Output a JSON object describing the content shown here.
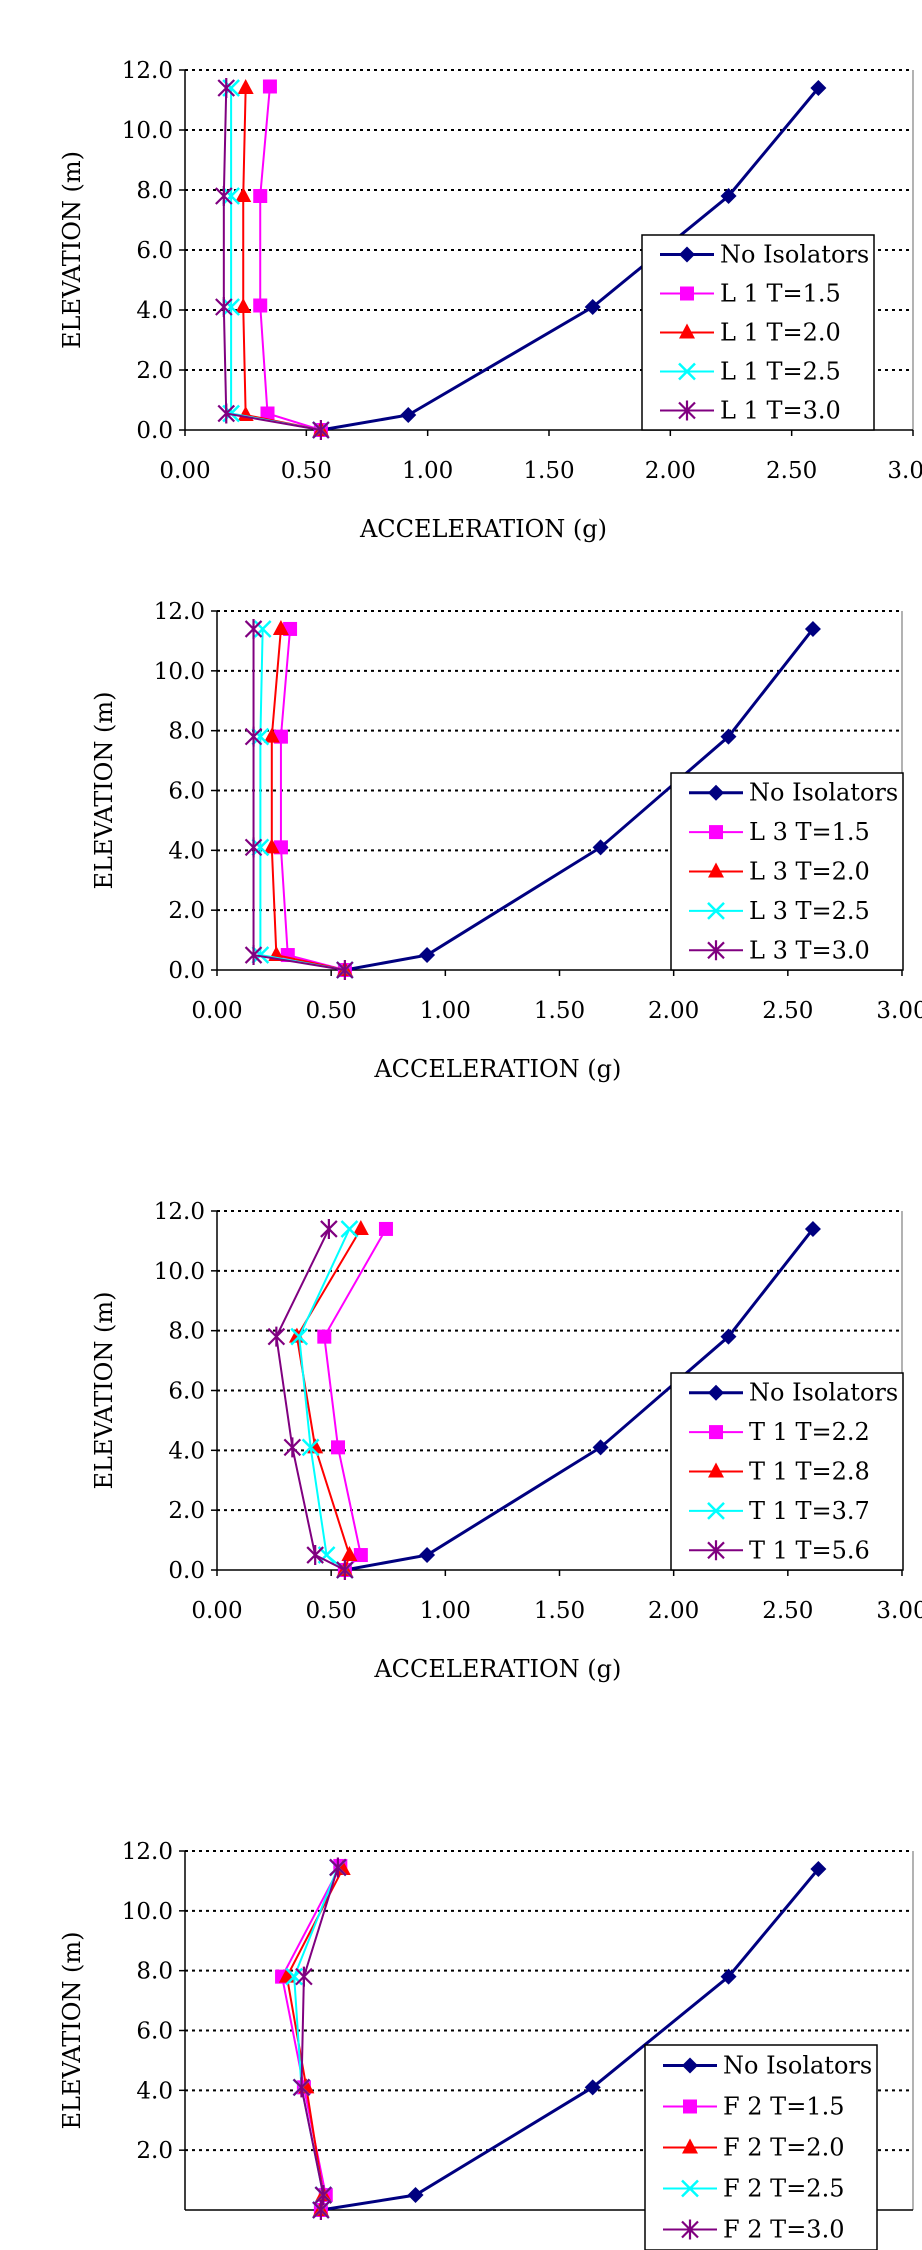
{
  "chart_data": [
    {
      "type": "line",
      "title": "",
      "xlabel": "ACCELERATION (g)",
      "ylabel": "ELEVATION (m)",
      "xlim": [
        0,
        3
      ],
      "ylim": [
        0,
        12
      ],
      "x_ticks": [
        "0.00",
        "0.50",
        "1.00",
        "1.50",
        "2.00",
        "2.50",
        "3.00"
      ],
      "y_ticks": [
        "0.0",
        "2.0",
        "4.0",
        "6.0",
        "8.0",
        "10.0",
        "12.0"
      ],
      "grid": "horizontal dotted",
      "legend_position": "right",
      "series": [
        {
          "name": "No Isolators",
          "color": "#000080",
          "marker": "diamond",
          "points": [
            [
              0.56,
              0.0
            ],
            [
              0.92,
              0.5
            ],
            [
              1.68,
              4.1
            ],
            [
              2.24,
              7.8
            ],
            [
              2.61,
              11.4
            ]
          ]
        },
        {
          "name": "L 1 T=1.5",
          "color": "#ff00ff",
          "marker": "square",
          "points": [
            [
              0.56,
              0.0
            ],
            [
              0.34,
              0.55
            ],
            [
              0.31,
              4.15
            ],
            [
              0.31,
              7.8
            ],
            [
              0.35,
              11.45
            ]
          ]
        },
        {
          "name": "L 1 T=2.0",
          "color": "#ff0000",
          "marker": "triangle",
          "points": [
            [
              0.56,
              0.0
            ],
            [
              0.25,
              0.5
            ],
            [
              0.24,
              4.1
            ],
            [
              0.24,
              7.8
            ],
            [
              0.25,
              11.4
            ]
          ]
        },
        {
          "name": "L 1 T=2.5",
          "color": "#00ffff",
          "marker": "x",
          "points": [
            [
              0.56,
              0.0
            ],
            [
              0.19,
              0.55
            ],
            [
              0.19,
              4.1
            ],
            [
              0.19,
              7.8
            ],
            [
              0.19,
              11.4
            ]
          ]
        },
        {
          "name": "L 1 T=3.0",
          "color": "#800080",
          "marker": "star",
          "points": [
            [
              0.56,
              0.0
            ],
            [
              0.17,
              0.55
            ],
            [
              0.16,
              4.1
            ],
            [
              0.16,
              7.8
            ],
            [
              0.17,
              11.4
            ]
          ]
        }
      ]
    },
    {
      "type": "line",
      "title": "",
      "xlabel": "ACCELERATION (g)",
      "ylabel": "ELEVATION (m)",
      "xlim": [
        0,
        3
      ],
      "ylim": [
        0,
        12
      ],
      "x_ticks": [
        "0.00",
        "0.50",
        "1.00",
        "1.50",
        "2.00",
        "2.50",
        "3.00"
      ],
      "y_ticks": [
        "0.0",
        "2.0",
        "4.0",
        "6.0",
        "8.0",
        "10.0",
        "12.0"
      ],
      "grid": "horizontal dotted",
      "legend_position": "right",
      "series": [
        {
          "name": "No Isolators",
          "color": "#000080",
          "marker": "diamond",
          "points": [
            [
              0.56,
              0.0
            ],
            [
              0.92,
              0.5
            ],
            [
              1.68,
              4.1
            ],
            [
              2.24,
              7.8
            ],
            [
              2.61,
              11.4
            ]
          ]
        },
        {
          "name": "L 3 T=1.5",
          "color": "#ff00ff",
          "marker": "square",
          "points": [
            [
              0.56,
              0.0
            ],
            [
              0.31,
              0.5
            ],
            [
              0.28,
              4.1
            ],
            [
              0.28,
              7.8
            ],
            [
              0.32,
              11.4
            ]
          ]
        },
        {
          "name": "L 3 T=2.0",
          "color": "#ff0000",
          "marker": "triangle",
          "points": [
            [
              0.56,
              0.0
            ],
            [
              0.26,
              0.5
            ],
            [
              0.24,
              4.1
            ],
            [
              0.24,
              7.8
            ],
            [
              0.28,
              11.4
            ]
          ]
        },
        {
          "name": "L 3 T=2.5",
          "color": "#00ffff",
          "marker": "x",
          "points": [
            [
              0.56,
              0.0
            ],
            [
              0.19,
              0.5
            ],
            [
              0.19,
              4.1
            ],
            [
              0.19,
              7.8
            ],
            [
              0.2,
              11.4
            ]
          ]
        },
        {
          "name": "L 3 T=3.0",
          "color": "#800080",
          "marker": "star",
          "points": [
            [
              0.56,
              0.0
            ],
            [
              0.16,
              0.5
            ],
            [
              0.16,
              4.1
            ],
            [
              0.16,
              7.8
            ],
            [
              0.16,
              11.4
            ]
          ]
        }
      ]
    },
    {
      "type": "line",
      "title": "",
      "xlabel": "ACCELERATION (g)",
      "ylabel": "ELEVATION (m)",
      "xlim": [
        0,
        3
      ],
      "ylim": [
        0,
        12
      ],
      "x_ticks": [
        "0.00",
        "0.50",
        "1.00",
        "1.50",
        "2.00",
        "2.50",
        "3.00"
      ],
      "y_ticks": [
        "0.0",
        "2.0",
        "4.0",
        "6.0",
        "8.0",
        "10.0",
        "12.0"
      ],
      "grid": "horizontal dotted",
      "legend_position": "right",
      "series": [
        {
          "name": "No Isolators",
          "color": "#000080",
          "marker": "diamond",
          "points": [
            [
              0.56,
              0.0
            ],
            [
              0.92,
              0.5
            ],
            [
              1.68,
              4.1
            ],
            [
              2.24,
              7.8
            ],
            [
              2.61,
              11.4
            ]
          ]
        },
        {
          "name": "T 1 T=2.2",
          "color": "#ff00ff",
          "marker": "square",
          "points": [
            [
              0.56,
              0.0
            ],
            [
              0.63,
              0.5
            ],
            [
              0.53,
              4.1
            ],
            [
              0.47,
              7.8
            ],
            [
              0.74,
              11.4
            ]
          ]
        },
        {
          "name": "T 1 T=2.8",
          "color": "#ff0000",
          "marker": "triangle",
          "points": [
            [
              0.56,
              0.0
            ],
            [
              0.58,
              0.5
            ],
            [
              0.43,
              4.1
            ],
            [
              0.35,
              7.8
            ],
            [
              0.63,
              11.4
            ]
          ]
        },
        {
          "name": "T 1 T=3.7",
          "color": "#00ffff",
          "marker": "x",
          "points": [
            [
              0.56,
              0.0
            ],
            [
              0.48,
              0.5
            ],
            [
              0.41,
              4.1
            ],
            [
              0.36,
              7.8
            ],
            [
              0.58,
              11.4
            ]
          ]
        },
        {
          "name": "T 1 T=5.6",
          "color": "#800080",
          "marker": "star",
          "points": [
            [
              0.56,
              0.0
            ],
            [
              0.43,
              0.5
            ],
            [
              0.33,
              4.1
            ],
            [
              0.26,
              7.8
            ],
            [
              0.49,
              11.4
            ]
          ]
        }
      ]
    },
    {
      "type": "line",
      "title": "",
      "xlabel": "",
      "ylabel": "ELEVATION (m)",
      "xlim": [
        0,
        3
      ],
      "ylim": [
        0,
        12
      ],
      "x_ticks": [],
      "y_ticks": [
        "2.0",
        "4.0",
        "6.0",
        "8.0",
        "10.0",
        "12.0"
      ],
      "grid": "horizontal dotted",
      "legend_position": "right",
      "series": [
        {
          "name": "No Isolators",
          "color": "#000080",
          "marker": "diamond",
          "points": [
            [
              0.56,
              0.0
            ],
            [
              0.95,
              0.5
            ],
            [
              1.68,
              4.1
            ],
            [
              2.24,
              7.8
            ],
            [
              2.61,
              11.4
            ]
          ]
        },
        {
          "name": "F 2 T=1.5",
          "color": "#ff00ff",
          "marker": "square",
          "points": [
            [
              0.56,
              0.0
            ],
            [
              0.58,
              0.5
            ],
            [
              0.49,
              4.1
            ],
            [
              0.4,
              7.8
            ],
            [
              0.64,
              11.5
            ]
          ]
        },
        {
          "name": "F 2 T=2.0",
          "color": "#ff0000",
          "marker": "triangle",
          "points": [
            [
              0.56,
              0.0
            ],
            [
              0.57,
              0.5
            ],
            [
              0.5,
              4.1
            ],
            [
              0.42,
              7.8
            ],
            [
              0.65,
              11.4
            ]
          ]
        },
        {
          "name": "F 2 T=2.5",
          "color": "#00ffff",
          "marker": "x",
          "points": [
            [
              0.56,
              0.0
            ],
            [
              0.57,
              0.5
            ],
            [
              0.48,
              4.1
            ],
            [
              0.45,
              7.8
            ],
            [
              0.63,
              11.45
            ]
          ]
        },
        {
          "name": "F 2 T=3.0",
          "color": "#800080",
          "marker": "star",
          "points": [
            [
              0.56,
              0.0
            ],
            [
              0.57,
              0.5
            ],
            [
              0.48,
              4.1
            ],
            [
              0.49,
              7.8
            ],
            [
              0.63,
              11.45
            ]
          ]
        }
      ]
    }
  ]
}
